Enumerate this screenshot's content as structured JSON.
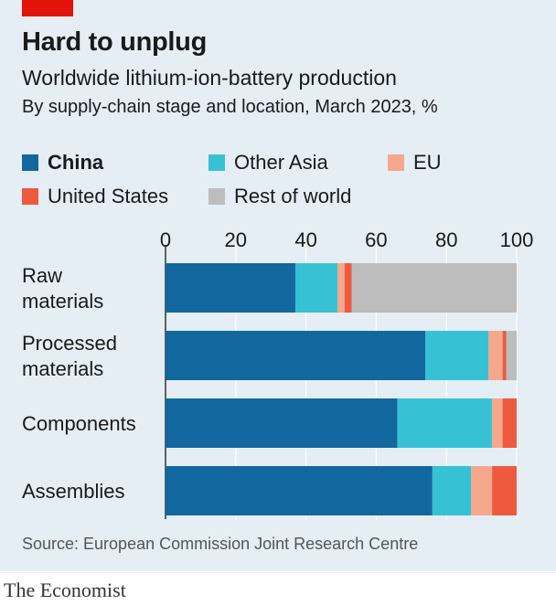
{
  "header": {
    "title": "Hard to unplug",
    "subtitle": "Worldwide lithium-ion-battery production",
    "subsubtitle": "By supply-chain stage and location, March 2023, %"
  },
  "legend": [
    {
      "name": "China",
      "color": "#12689e"
    },
    {
      "name": "Other Asia",
      "color": "#36c2d4"
    },
    {
      "name": "EU",
      "color": "#f6a88c"
    },
    {
      "name": "United States",
      "color": "#ee5a3e"
    },
    {
      "name": "Rest of world",
      "color": "#bdbdbd"
    }
  ],
  "chart_data": {
    "type": "bar",
    "orientation": "horizontal",
    "stacked": true,
    "categories": [
      "Raw materials",
      "Processed materials",
      "Components",
      "Assemblies"
    ],
    "category_labels": [
      [
        "Raw",
        "materials"
      ],
      [
        "Processed",
        "materials"
      ],
      [
        "Components"
      ],
      [
        "Assemblies"
      ]
    ],
    "series": [
      {
        "name": "China",
        "color": "#12689e",
        "values": [
          37,
          74,
          66,
          76
        ]
      },
      {
        "name": "Other Asia",
        "color": "#36c2d4",
        "values": [
          12,
          18,
          27,
          11
        ]
      },
      {
        "name": "EU",
        "color": "#f6a88c",
        "values": [
          2,
          4,
          3,
          6
        ]
      },
      {
        "name": "United States",
        "color": "#ee5a3e",
        "values": [
          2,
          1,
          4,
          7
        ]
      },
      {
        "name": "Rest of world",
        "color": "#bdbdbd",
        "values": [
          47,
          3,
          0,
          0
        ]
      }
    ],
    "xlim": [
      0,
      100
    ],
    "xticks": [
      0,
      20,
      40,
      60,
      80,
      100
    ],
    "grid": true,
    "legend_position": "top"
  },
  "source": "Source: European Commission Joint Research Centre",
  "brand": "The Economist"
}
